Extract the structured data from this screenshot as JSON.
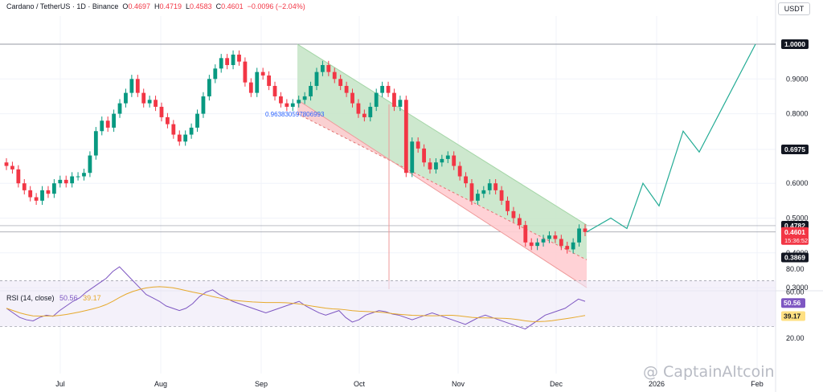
{
  "header": {
    "symbol": "Cardano / TetherUS · 1D · Binance",
    "open_label": "O",
    "open": "0.4697",
    "high_label": "H",
    "high": "0.4719",
    "low_label": "L",
    "low": "0.4583",
    "close_label": "C",
    "close": "0.4601",
    "change": "−0.0096 (−2.04%)"
  },
  "currency_button": "USDT",
  "fib_label": "0.963830597806993",
  "rsi_header": {
    "title": "RSI (14, close)",
    "rsi": "50.56",
    "ma": "39.17"
  },
  "watermark": "@ CaptainAltcoin",
  "chart_data": [
    {
      "type": "candlestick",
      "title": "Cardano / TetherUS · 1D · Binance",
      "y_axis": {
        "ticks": [
          "1.0000",
          "0.9000",
          "0.8000",
          "0.6975",
          "0.6000",
          "0.5000",
          "0.4000",
          "0.3000"
        ],
        "range": [
          0.3,
          1.07
        ]
      },
      "x_axis": {
        "ticks": [
          "Jul",
          "Aug",
          "Sep",
          "Oct",
          "Nov",
          "Dec",
          "2026",
          "Feb"
        ]
      },
      "price_labels": [
        {
          "value": 1.0,
          "text": "1.0000",
          "style": "black"
        },
        {
          "value": 0.6975,
          "text": "0.6975",
          "style": "black"
        },
        {
          "value": 0.4782,
          "text": "0.4782",
          "style": "black"
        },
        {
          "value": 0.4601,
          "text": "0.4601",
          "sub": "15:36:52",
          "style": "red"
        },
        {
          "value": 0.3869,
          "text": "0.3869",
          "style": "black"
        }
      ],
      "horizontal_levels": [
        1.0,
        0.4782,
        0.4601
      ],
      "channel": {
        "from": "Sep",
        "to": "Dec",
        "upper": [
          1.0,
          0.48
        ],
        "mid": [
          0.8,
          0.38
        ],
        "lower": [
          0.84,
          0.3
        ]
      },
      "projection_path": [
        0.4601,
        0.5,
        0.47,
        0.6,
        0.535,
        0.75,
        0.69,
        1.0
      ],
      "colors": {
        "up": "#089981",
        "down": "#f23645",
        "channel_upper": "#c8e6c9",
        "channel_lower": "#ffcdd2",
        "projection": "#22ab94"
      }
    },
    {
      "type": "line",
      "title": "RSI (14, close)",
      "y_axis": {
        "ticks": [
          "80.00",
          "60.00",
          "50.56",
          "39.17",
          "20.00"
        ],
        "range": [
          15,
          85
        ]
      },
      "levels": {
        "upper": 70,
        "lower": 30
      },
      "series": [
        {
          "name": "RSI",
          "color": "#7e57c2",
          "last": 50.56
        },
        {
          "name": "MA",
          "color": "#e6a92c",
          "last": 39.17
        }
      ]
    }
  ]
}
